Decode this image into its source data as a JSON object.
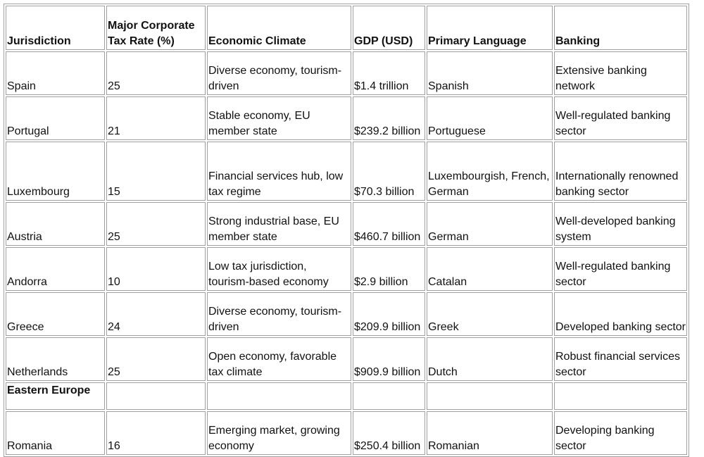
{
  "table": {
    "headers": [
      "Jurisdiction",
      "Major Corporate Tax Rate (%)",
      "Economic Climate",
      "GDP (USD)",
      "Primary Language",
      "Banking"
    ],
    "rows": [
      [
        "Spain",
        "25",
        "Diverse economy, tourism-driven",
        "$1.4 trillion",
        "Spanish",
        "Extensive banking network"
      ],
      [
        "Portugal",
        "21",
        "Stable economy, EU member state",
        "$239.2 billion",
        "Portuguese",
        "Well-regulated banking sector"
      ],
      [
        "Luxembourg",
        "15",
        "Financial services hub, low tax regime",
        "$70.3 billion",
        "Luxembourgish, French, German",
        "Internationally renowned banking sector"
      ],
      [
        "Austria",
        "25",
        "Strong industrial base, EU member state",
        "$460.7 billion",
        "German",
        "Well-developed banking system"
      ],
      [
        "Andorra",
        "10",
        "Low tax jurisdiction, tourism-based economy",
        "$2.9 billion",
        "Catalan",
        "Well-regulated banking sector"
      ],
      [
        "Greece",
        "24",
        "Diverse economy, tourism-driven",
        "$209.9 billion",
        "Greek",
        "Developed banking sector"
      ],
      [
        "Netherlands",
        "25",
        "Open economy, favorable tax climate",
        "$909.9 billion",
        "Dutch",
        "Robust financial services sector"
      ]
    ],
    "section_label": "Eastern Europe",
    "section_rows": [
      [
        "Romania",
        "16",
        "Emerging market, growing economy",
        "$250.4 billion",
        "Romanian",
        "Developing banking sector"
      ]
    ]
  }
}
